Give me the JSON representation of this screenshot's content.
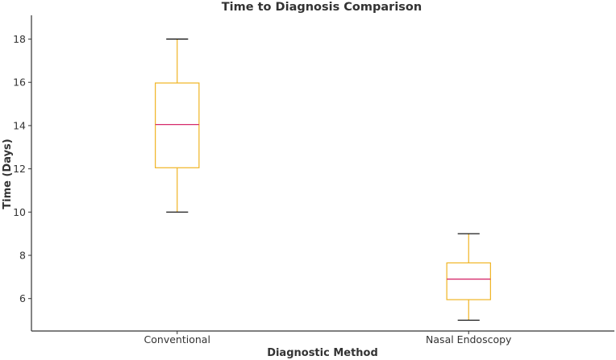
{
  "chart_data": {
    "type": "box",
    "title": "Time to Diagnosis Comparison",
    "xlabel": "Diagnostic Method",
    "ylabel": "Time (Days)",
    "ylim": [
      4.5,
      19.1
    ],
    "yticks": [
      6,
      8,
      10,
      12,
      14,
      16,
      18
    ],
    "grid": false,
    "categories": [
      "Conventional",
      "Nasal Endoscopy"
    ],
    "boxes": [
      {
        "whisker_low": 10,
        "q1": 12.05,
        "median": 14.05,
        "q3": 15.97,
        "whisker_high": 18
      },
      {
        "whisker_low": 5,
        "q1": 5.95,
        "median": 6.9,
        "q3": 7.65,
        "whisker_high": 9
      }
    ],
    "colors": {
      "box": "#f0b423",
      "whisker": "#f0b423",
      "cap": "#000000",
      "median": "#d62a6b",
      "axis": "#333333"
    }
  }
}
